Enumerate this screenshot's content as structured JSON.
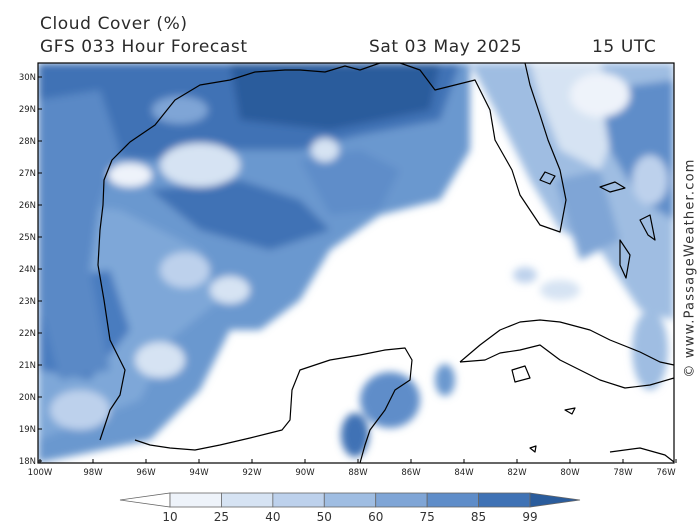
{
  "header": {
    "title": "Cloud Cover (%)",
    "subtitle": "GFS 033 Hour Forecast",
    "date": "Sat 03 May 2025",
    "time": "15 UTC"
  },
  "map": {
    "lat_labels": [
      "30N",
      "29N",
      "28N",
      "27N",
      "26N",
      "25N",
      "24N",
      "23N",
      "22N",
      "21N",
      "20N",
      "19N",
      "18N"
    ],
    "lon_labels": [
      "100W",
      "98W",
      "96W",
      "94W",
      "92W",
      "90W",
      "88W",
      "86W",
      "84W",
      "82W",
      "80W",
      "78W",
      "76W"
    ],
    "coastline_color": "#000000"
  },
  "colorbar": {
    "labels": [
      "10",
      "25",
      "40",
      "50",
      "60",
      "75",
      "85",
      "99"
    ],
    "colors": [
      "#ffffff",
      "#eef3fa",
      "#d6e3f3",
      "#bdd1ec",
      "#9fbde2",
      "#7fa5d6",
      "#5f8dc9",
      "#3f72b5",
      "#2a5c9c"
    ]
  },
  "watermark": "© www.PassageWeather.com"
}
